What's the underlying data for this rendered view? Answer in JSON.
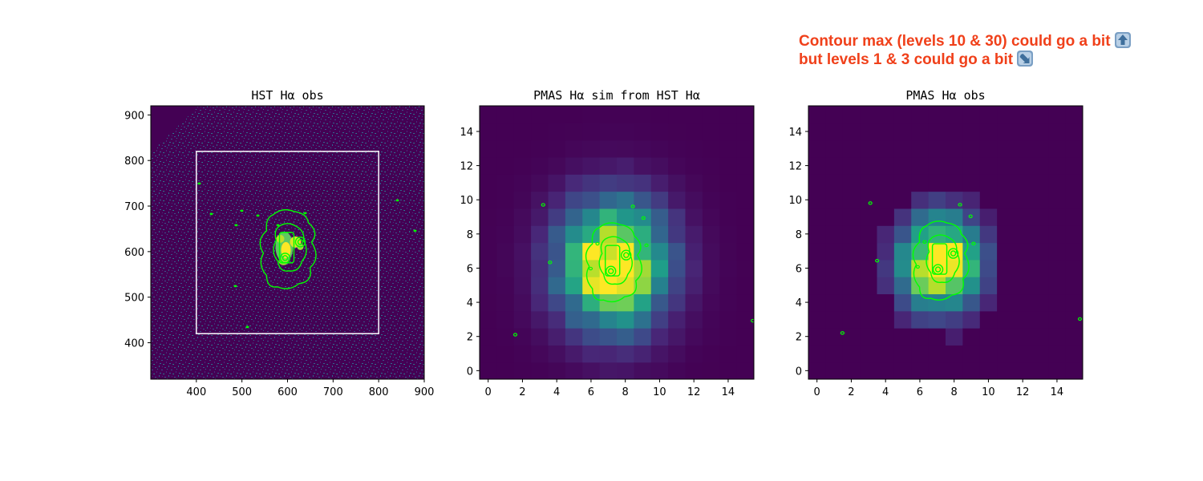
{
  "annotation": {
    "line1": "Contour max (levels 10 & 30) could go a bit",
    "icon1": "up-arrow-emoji",
    "line2": "but levels 1 & 3 could go a bit",
    "icon2": "down-right-arrow-emoji",
    "color": "#f0401a"
  },
  "contour_color": "#00ff00",
  "colormap": "viridis",
  "chart_data": [
    {
      "type": "heatmap",
      "title": "HST Hα obs",
      "xlim": [
        300,
        900
      ],
      "ylim": [
        320,
        920
      ],
      "xticks": [
        400,
        500,
        600,
        700,
        800,
        900
      ],
      "yticks": [
        400,
        500,
        600,
        700,
        800,
        900
      ],
      "center": [
        600,
        600
      ],
      "box": {
        "x": [
          400,
          800
        ],
        "y": [
          420,
          820
        ]
      },
      "contour_levels": [
        1,
        3,
        10,
        30
      ]
    },
    {
      "type": "heatmap",
      "title": "PMAS Hα sim from HST Hα",
      "xlim": [
        -0.5,
        15.5
      ],
      "ylim": [
        -0.5,
        15.5
      ],
      "xticks": [
        0,
        2,
        4,
        6,
        8,
        10,
        12,
        14
      ],
      "yticks": [
        0,
        2,
        4,
        6,
        8,
        10,
        12,
        14
      ],
      "center": [
        7.3,
        6.2
      ],
      "contour_levels": [
        1,
        3,
        10,
        30
      ]
    },
    {
      "type": "heatmap",
      "title": "PMAS Hα obs",
      "xlim": [
        -0.5,
        15.5
      ],
      "ylim": [
        -0.5,
        15.5
      ],
      "xticks": [
        0,
        2,
        4,
        6,
        8,
        10,
        12,
        14
      ],
      "yticks": [
        0,
        2,
        4,
        6,
        8,
        10,
        12,
        14
      ],
      "center": [
        7.2,
        6.3
      ],
      "contour_levels": [
        1,
        3,
        10,
        30
      ]
    }
  ]
}
